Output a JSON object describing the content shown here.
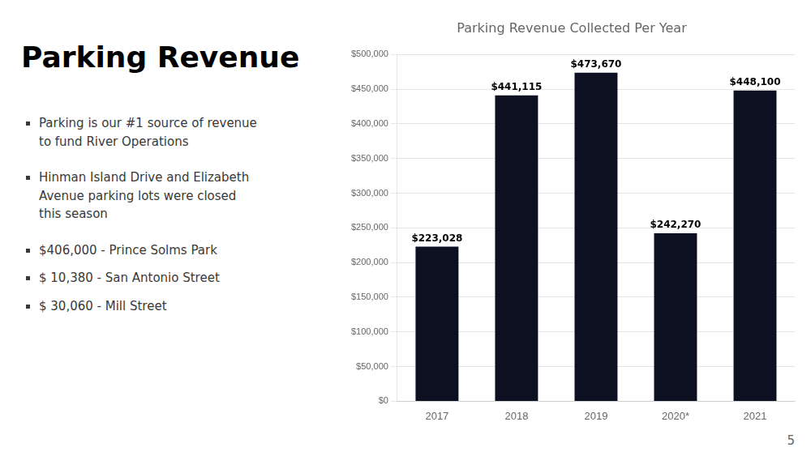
{
  "title": "Parking Revenue",
  "annotations": [
    "Parking is our #1 source of revenue\nto fund River Operations",
    "Hinman Island Drive and Elizabeth\nAvenue parking lots were closed\nthis season",
    "$406,000 - Prince Solms Park",
    "$ 10,380 - San Antonio Street",
    "$ 30,060 - Mill Street",
    "5"
  ],
  "chart_data": {
    "type": "bar",
    "title": "Parking Revenue Collected Per Year",
    "categories": [
      "2017",
      "2018",
      "2019",
      "2020*",
      "2021"
    ],
    "values": [
      223028,
      441115,
      473670,
      242270,
      448100
    ],
    "value_labels": [
      "$223,028",
      "$441,115",
      "$473,670",
      "$242,270",
      "$448,100"
    ],
    "data_labels": true,
    "color": "#0d1020",
    "ylim": [
      0,
      500000
    ],
    "yticks": [
      {
        "value": 0,
        "label": "$0"
      },
      {
        "value": 50000,
        "label": "$50,000"
      },
      {
        "value": 100000,
        "label": "$100,000"
      },
      {
        "value": 150000,
        "label": "$150,000"
      },
      {
        "value": 200000,
        "label": "$200,000"
      },
      {
        "value": 250000,
        "label": "$250,000"
      },
      {
        "value": 300000,
        "label": "$300,000"
      },
      {
        "value": 350000,
        "label": "$350,000"
      },
      {
        "value": 400000,
        "label": "$400,000"
      },
      {
        "value": 450000,
        "label": "$450,000"
      },
      {
        "value": 500000,
        "label": "$500,000"
      }
    ],
    "grid": true
  }
}
